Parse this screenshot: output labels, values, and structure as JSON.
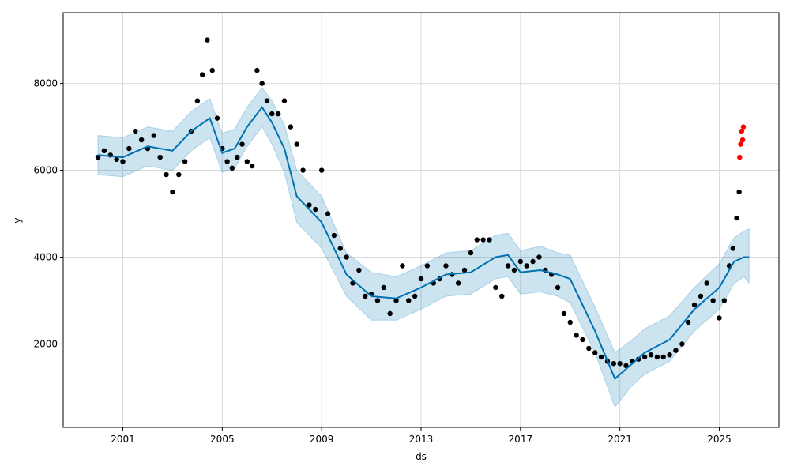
{
  "chart_data": {
    "type": "scatter",
    "title": "",
    "xlabel": "ds",
    "ylabel": "y",
    "xlim": [
      1998.6,
      2027.4
    ],
    "ylim": [
      80,
      9630
    ],
    "grid": true,
    "x_ticks": [
      2001,
      2005,
      2009,
      2013,
      2017,
      2021,
      2025
    ],
    "x_tick_labels": [
      "2001",
      "2005",
      "2009",
      "2013",
      "2017",
      "2021",
      "2025"
    ],
    "y_ticks": [
      2000,
      4000,
      6000,
      8000
    ],
    "y_tick_labels": [
      "2000",
      "4000",
      "6000",
      "8000"
    ],
    "colors": {
      "observed": "#000000",
      "recent": "#ff0000",
      "forecast": "#0072B2",
      "interval": "#0072B2",
      "grid": "#d9d9d9"
    },
    "series": [
      {
        "kind": "observed",
        "x": [
          2000.0,
          2000.25,
          2000.5,
          2000.75,
          2001.0,
          2001.25,
          2001.5,
          2001.75,
          2002.0,
          2002.25,
          2002.5,
          2002.75,
          2003.0,
          2003.25,
          2003.5,
          2003.75,
          2004.0,
          2004.2,
          2004.4,
          2004.6,
          2004.8,
          2005.0,
          2005.2,
          2005.4,
          2005.6,
          2005.8,
          2006.0,
          2006.2,
          2006.4,
          2006.6,
          2006.8,
          2007.0,
          2007.25,
          2007.5,
          2007.75,
          2008.0,
          2008.25,
          2008.5,
          2008.75,
          2009.0,
          2009.25,
          2009.5,
          2009.75,
          2010.0,
          2010.25,
          2010.5,
          2010.75,
          2011.0,
          2011.25,
          2011.5,
          2011.75,
          2012.0,
          2012.25,
          2012.5,
          2012.75,
          2013.0,
          2013.25,
          2013.5,
          2013.75,
          2014.0,
          2014.25,
          2014.5,
          2014.75,
          2015.0,
          2015.25,
          2015.5,
          2015.75,
          2016.0,
          2016.25,
          2016.5,
          2016.75,
          2017.0,
          2017.25,
          2017.5,
          2017.75,
          2018.0,
          2018.25,
          2018.5,
          2018.75,
          2019.0,
          2019.25,
          2019.5,
          2019.75,
          2020.0,
          2020.25,
          2020.5,
          2020.75,
          2021.0,
          2021.25,
          2021.5,
          2021.75,
          2022.0,
          2022.25,
          2022.5,
          2022.75,
          2023.0,
          2023.25,
          2023.5,
          2023.75,
          2024.0,
          2024.25,
          2024.5,
          2024.75,
          2025.0,
          2025.2,
          2025.4,
          2025.55,
          2025.7,
          2025.8
        ],
        "y": [
          6300,
          6450,
          6350,
          6250,
          6200,
          6500,
          6900,
          6700,
          6500,
          6800,
          6300,
          5900,
          5500,
          5900,
          6200,
          6900,
          7600,
          8200,
          9000,
          8300,
          7200,
          6500,
          6200,
          6050,
          6300,
          6600,
          6200,
          6100,
          8300,
          8000,
          7600,
          7300,
          7300,
          7600,
          7000,
          6600,
          6000,
          5200,
          5100,
          6000,
          5000,
          4500,
          4200,
          4000,
          3400,
          3700,
          3100,
          3150,
          3000,
          3300,
          2700,
          3000,
          3800,
          3000,
          3100,
          3500,
          3800,
          3400,
          3500,
          3800,
          3600,
          3400,
          3700,
          4100,
          4400,
          4400,
          4400,
          3300,
          3100,
          3800,
          3700,
          3900,
          3800,
          3900,
          4000,
          3700,
          3600,
          3300,
          2700,
          2500,
          2200,
          2100,
          1900,
          1800,
          1700,
          1600,
          1550,
          1550,
          1500,
          1600,
          1650,
          1700,
          1750,
          1700,
          1700,
          1750,
          1850,
          2000,
          2500,
          2900,
          3100,
          3400,
          3000,
          2600,
          3000,
          3800,
          4200,
          4900,
          5500
        ]
      },
      {
        "kind": "recent",
        "x": [
          2025.82,
          2025.86,
          2025.9,
          2025.94,
          2025.97
        ],
        "y": [
          6300,
          6600,
          6900,
          6700,
          7000
        ]
      },
      {
        "kind": "forecast",
        "x": [
          2000.0,
          2001.0,
          2002.0,
          2003.0,
          2003.75,
          2004.5,
          2005.0,
          2005.5,
          2006.0,
          2006.6,
          2007.0,
          2007.5,
          2008.0,
          2009.0,
          2010.0,
          2011.0,
          2012.0,
          2013.0,
          2014.0,
          2015.0,
          2016.0,
          2016.5,
          2017.0,
          2017.8,
          2018.5,
          2019.0,
          2020.0,
          2020.8,
          2021.5,
          2022.0,
          2023.0,
          2024.0,
          2025.0,
          2025.6,
          2026.0,
          2026.2
        ],
        "yhat": [
          6350,
          6300,
          6550,
          6450,
          6900,
          7200,
          6400,
          6500,
          7000,
          7450,
          7100,
          6500,
          5400,
          4800,
          3600,
          3100,
          3050,
          3300,
          3600,
          3650,
          4000,
          4050,
          3650,
          3700,
          3600,
          3500,
          2300,
          1200,
          1550,
          1800,
          2100,
          2800,
          3300,
          3900,
          4000,
          4000
        ],
        "lower": [
          5900,
          5850,
          6100,
          6000,
          6450,
          6750,
          5950,
          6050,
          6550,
          7000,
          6600,
          5950,
          4800,
          4200,
          3100,
          2550,
          2550,
          2800,
          3100,
          3150,
          3500,
          3550,
          3150,
          3200,
          3100,
          2950,
          1800,
          550,
          1050,
          1300,
          1600,
          2300,
          2800,
          3400,
          3550,
          3400
        ],
        "upper": [
          6800,
          6750,
          7000,
          6900,
          7350,
          7650,
          6850,
          6950,
          7450,
          7900,
          7600,
          7050,
          6000,
          5400,
          4100,
          3650,
          3550,
          3800,
          4100,
          4150,
          4500,
          4550,
          4150,
          4250,
          4100,
          4050,
          2850,
          1800,
          2100,
          2350,
          2650,
          3300,
          3850,
          4450,
          4600,
          4650
        ]
      }
    ]
  }
}
